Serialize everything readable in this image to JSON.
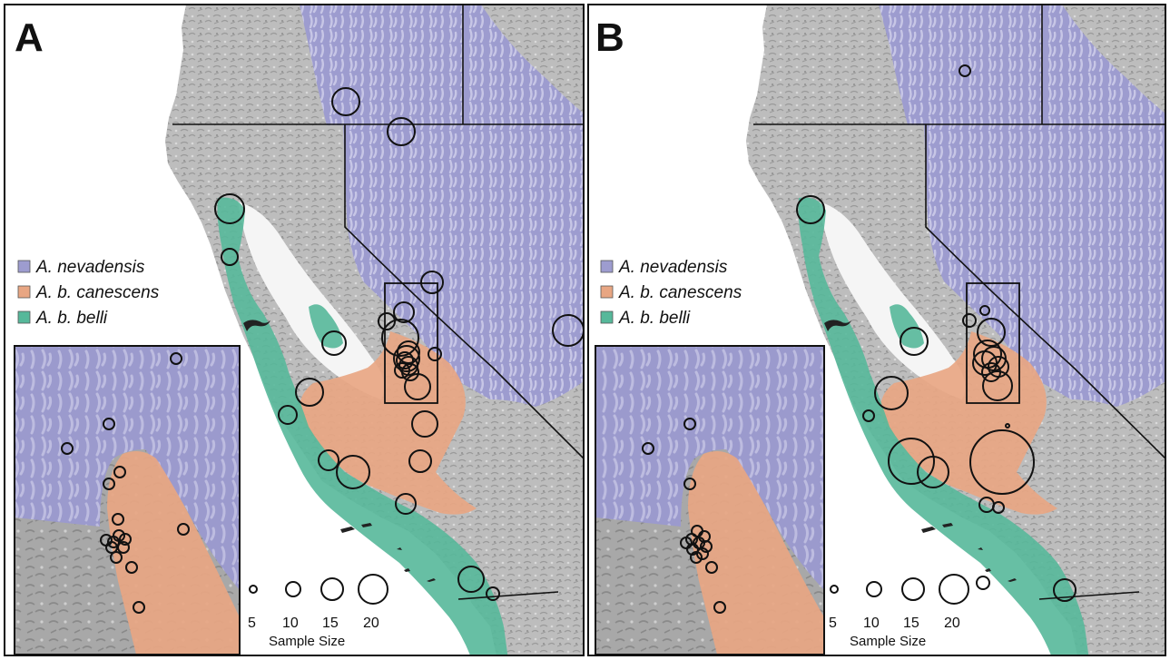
{
  "colors": {
    "nevadensis": "#9d9ccf",
    "canescens": "#e8a683",
    "belli": "#56b89a",
    "land": "#bcbcbc",
    "valley": "#f4f4f4"
  },
  "panels": [
    {
      "letter": "A",
      "legend": [
        {
          "label": "A. nevadensis",
          "color_key": "nevadensis"
        },
        {
          "label": "A. b. canescens",
          "color_key": "canescens"
        },
        {
          "label": "A. b. belli",
          "color_key": "belli"
        }
      ],
      "size_legend": {
        "values": [
          "5",
          "10",
          "15",
          "20"
        ],
        "title": "Sample Size"
      }
    },
    {
      "letter": "B",
      "legend": [
        {
          "label": "A. nevadensis",
          "color_key": "nevadensis"
        },
        {
          "label": "A. b. canescens",
          "color_key": "canescens"
        },
        {
          "label": "A. b. belli",
          "color_key": "belli"
        }
      ],
      "size_legend": {
        "values": [
          "5",
          "10",
          "15",
          "20"
        ],
        "title": "Sample Size"
      }
    }
  ]
}
